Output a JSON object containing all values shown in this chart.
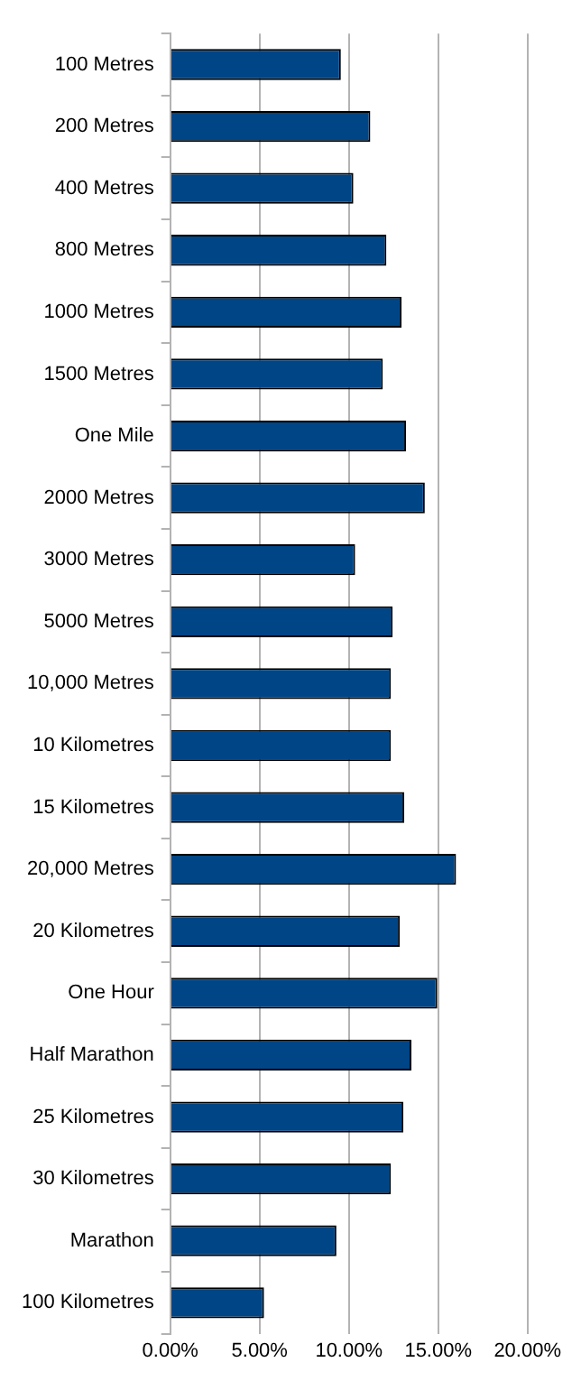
{
  "chart_data": {
    "type": "bar",
    "orientation": "horizontal",
    "categories": [
      "100 Metres",
      "200 Metres",
      "400 Metres",
      "800 Metres",
      "1000 Metres",
      "1500 Metres",
      "One Mile",
      "2000 Metres",
      "3000 Metres",
      "5000 Metres",
      "10,000 Metres",
      "10 Kilometres",
      "15 Kilometres",
      "20,000 Metres",
      "20 Kilometres",
      "One Hour",
      "Half Marathon",
      "25 Kilometres",
      "30 Kilometres",
      "Marathon",
      "100 Kilometres"
    ],
    "values": [
      9.55,
      11.2,
      10.25,
      12.1,
      12.95,
      11.9,
      13.2,
      14.25,
      10.35,
      12.45,
      12.35,
      12.35,
      13.1,
      16.0,
      12.85,
      14.95,
      13.5,
      13.05,
      12.35,
      9.3,
      5.25
    ],
    "color": "#004586",
    "xlim": [
      0,
      20
    ],
    "xticks": [
      {
        "value": 0,
        "label": "0.00%"
      },
      {
        "value": 5,
        "label": "5.00%"
      },
      {
        "value": 10,
        "label": "10.00%"
      },
      {
        "value": 15,
        "label": "15.00%"
      },
      {
        "value": 20,
        "label": "20.00%"
      }
    ],
    "grid": "x",
    "legend": false
  }
}
